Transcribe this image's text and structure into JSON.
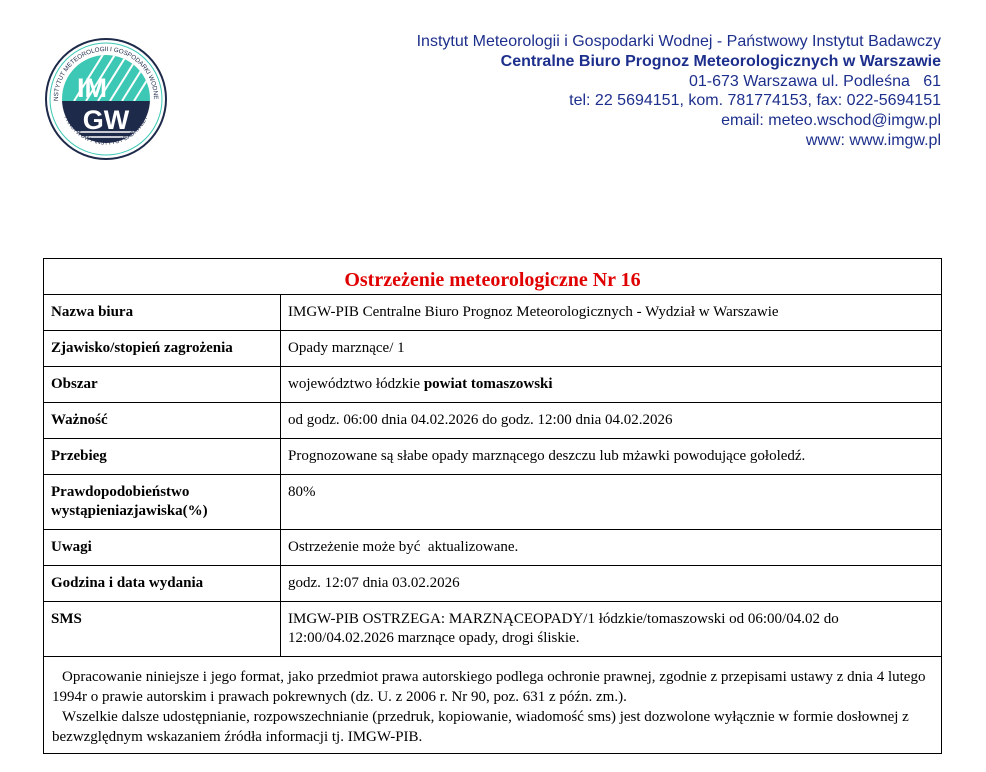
{
  "logo": {
    "text_top": "IM",
    "text_bottom": "GW",
    "ring_top": "INSTYTUT METEOROLOGII I GOSPODARKI WODNEJ",
    "ring_bottom": "PAŃSTWOWY INSTYTUT BADAWCZY",
    "colors": {
      "teal": "#3cc8b4",
      "navy": "#1e2a4a"
    }
  },
  "header": {
    "line1": "Instytut Meteorologii i Gospodarki Wodnej - Państwowy Instytut Badawczy",
    "line2": "Centralne Biuro Prognoz Meteorologicznych w Warszawie",
    "line3": "01-673 Warszawa ul. Podleśna   61",
    "line4": "tel: 22 5694151, kom. 781774153, fax: 022-5694151",
    "line5": "email: meteo.wschod@imgw.pl",
    "line6": "www: www.imgw.pl"
  },
  "title": "Ostrzeżenie meteorologiczne Nr 16",
  "rows": [
    {
      "label": "Nazwa biura",
      "value": "IMGW-PIB Centralne Biuro Prognoz Meteorologicznych - Wydział w Warszawie"
    },
    {
      "label": "Zjawisko/stopień zagrożenia",
      "value": "Opady marznące/ 1"
    },
    {
      "label": "Obszar",
      "value": "województwo łódzkie ",
      "value_bold": "powiat tomaszowski"
    },
    {
      "label": "Ważność",
      "value": "od godz. 06:00 dnia 04.02.2026 do godz. 12:00 dnia 04.02.2026"
    },
    {
      "label": "Przebieg",
      "value": "Prognozowane są słabe opady marznącego deszczu lub mżawki powodujące gołoledź."
    },
    {
      "label": "Prawdopodobieństwo wystąpieniazjawiska(%)",
      "value": "80%"
    },
    {
      "label": "Uwagi",
      "value": "Ostrzeżenie może być  aktualizowane."
    },
    {
      "label": "Godzina i data wydania",
      "value": "godz. 12:07 dnia 03.02.2026"
    },
    {
      "label": "SMS",
      "value": "IMGW-PIB OSTRZEGA: MARZNĄCEOPADY/1 łódzkie/tomaszowski od 06:00/04.02 do 12:00/04.02.2026 marznące opady, drogi śliskie."
    }
  ],
  "footer": {
    "p1": "Opracowanie niniejsze i jego format, jako przedmiot prawa autorskiego podlega ochronie prawnej, zgodnie z przepisami ustawy z dnia 4 lutego 1994r o prawie autorskim i prawach pokrewnych (dz. U. z 2006 r. Nr 90, poz. 631 z późn.  zm.).",
    "p2": "Wszelkie dalsze udostępnianie, rozpowszechnianie (przedruk, kopiowanie, wiadomość   sms) jest dozwolone wyłącznie w formie dosłownej z bezwzględnym wskazaniem źródła  informacji tj. IMGW-PIB."
  }
}
